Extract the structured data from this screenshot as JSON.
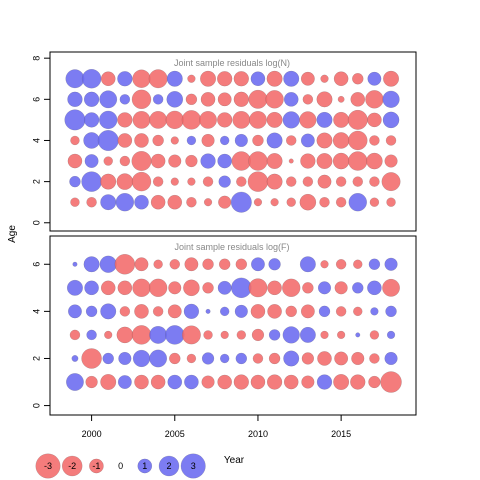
{
  "chart_data": {
    "type": "scatter",
    "subtype": "bubble-residual-plot",
    "ylabel": "Age",
    "xlabel": "Year",
    "x_ticks": [
      2000,
      2005,
      2010,
      2015
    ],
    "xlim": [
      1997.5,
      2019.5
    ],
    "years": [
      1999,
      2000,
      2001,
      2002,
      2003,
      2004,
      2005,
      2006,
      2007,
      2008,
      2009,
      2010,
      2011,
      2012,
      2013,
      2014,
      2015,
      2016,
      2017,
      2018
    ],
    "colors": {
      "positive": "#6a6af0",
      "negative": "#f26a6a",
      "edge": "#555555",
      "frame": "#000000",
      "title": "#888888"
    },
    "size_legend": [
      {
        "label": "-3",
        "value": -3
      },
      {
        "label": "-2",
        "value": -2
      },
      {
        "label": "-1",
        "value": -1
      },
      {
        "label": "0",
        "value": 0
      },
      {
        "label": "1",
        "value": 1
      },
      {
        "label": "2",
        "value": 2
      },
      {
        "label": "3",
        "value": 3
      }
    ],
    "panels": [
      {
        "title": "Joint sample residuals log(N)",
        "ylim": [
          -0.4,
          8.3
        ],
        "y_ticks": [
          0,
          2,
          4,
          6,
          8
        ],
        "residuals_by_age": {
          "1": [
            -0.4,
            -0.5,
            1.2,
            1.6,
            1.0,
            -1.0,
            -1.0,
            -0.5,
            -0.3,
            -0.8,
            2.1,
            -0.3,
            -0.3,
            -0.4,
            -1.3,
            -0.5,
            -0.5,
            1.6,
            -0.4,
            -0.4
          ],
          "2": [
            0.6,
            2.0,
            -1.2,
            -1.3,
            -1.8,
            -0.5,
            -0.3,
            -0.3,
            -0.5,
            0.7,
            -0.5,
            -2.0,
            -1.2,
            -0.5,
            -0.5,
            -0.9,
            -0.5,
            -0.5,
            -0.5,
            -1.7
          ],
          "3": [
            -1.0,
            0.9,
            -0.4,
            -0.5,
            -1.9,
            -1.0,
            -0.8,
            -0.7,
            1.1,
            1.0,
            -1.8,
            -1.8,
            -1.2,
            -0.1,
            -1.1,
            -1.2,
            -1.3,
            -1.8,
            -1.3,
            -0.8
          ],
          "4": [
            -0.4,
            1.3,
            2.1,
            -1.0,
            -1.0,
            -0.6,
            -0.3,
            0.4,
            -0.8,
            0.4,
            0.8,
            -0.6,
            1.2,
            -0.5,
            0.9,
            -1.2,
            -1.3,
            -1.8,
            -0.5,
            -0.5
          ],
          "5": [
            2.1,
            1.1,
            1.6,
            -1.1,
            -1.5,
            -1.5,
            -1.6,
            -1.8,
            -1.5,
            -1.1,
            -1.5,
            -1.5,
            -1.2,
            1.4,
            -1.4,
            1.2,
            -1.2,
            -1.9,
            -1.0,
            1.3
          ],
          "6": [
            1.1,
            1.1,
            1.5,
            0.5,
            -1.8,
            0.5,
            1.3,
            -0.6,
            -1.0,
            -0.9,
            -1.1,
            -1.7,
            -1.6,
            1.0,
            -0.5,
            -1.2,
            -0.2,
            -1.0,
            -1.6,
            1.4
          ],
          "7": [
            1.7,
            1.8,
            -1.0,
            1.1,
            -1.6,
            -1.7,
            1.2,
            -0.3,
            -1.2,
            -1.1,
            -1.1,
            1.0,
            -1.2,
            1.2,
            -0.9,
            -0.3,
            -1.0,
            -0.6,
            0.9,
            -1.2
          ]
        }
      },
      {
        "title": "Joint sample residuals log(F)",
        "ylim": [
          -0.4,
          7.2
        ],
        "y_ticks": [
          0,
          2,
          4,
          6
        ],
        "residuals_by_age": {
          "1": [
            1.5,
            -0.7,
            -1.2,
            0.9,
            -1.0,
            -1.0,
            1.0,
            1.0,
            -0.8,
            -1.0,
            -1.1,
            -1.0,
            -1.1,
            -1.0,
            -0.8,
            1.1,
            -1.2,
            -1.1,
            -0.7,
            -2.2
          ],
          "2": [
            0.2,
            -2.0,
            0.6,
            0.8,
            1.4,
            1.5,
            -0.6,
            -0.4,
            0.7,
            0.4,
            0.6,
            -0.5,
            -0.6,
            1.2,
            -0.7,
            -1.0,
            -0.9,
            -0.8,
            -0.5,
            0.8
          ],
          "3": [
            -0.5,
            0.5,
            -0.3,
            -1.3,
            -1.8,
            1.5,
            1.8,
            -1.7,
            -0.4,
            -0.3,
            -0.4,
            -0.7,
            0.6,
            1.4,
            1.2,
            -0.3,
            -0.3,
            0.1,
            -0.4,
            0.3
          ],
          "4": [
            0.9,
            0.6,
            1.2,
            -0.5,
            -1.0,
            -0.5,
            -0.9,
            1.1,
            0.1,
            0.4,
            0.8,
            -1.0,
            -1.0,
            -0.6,
            -0.9,
            0.6,
            -0.5,
            -0.4,
            0.3,
            0.6
          ],
          "5": [
            1.2,
            1.0,
            -1.0,
            -1.0,
            -1.6,
            -1.6,
            -0.8,
            -1.3,
            -0.6,
            0.9,
            2.0,
            -1.7,
            -1.0,
            -1.6,
            -0.6,
            0.8,
            -0.8,
            0.6,
            1.0,
            -1.5
          ],
          "6": [
            0.1,
            1.2,
            1.4,
            -2.0,
            -0.9,
            -0.4,
            -0.5,
            -0.9,
            -0.6,
            -0.6,
            -0.6,
            0.9,
            0.7,
            0.0,
            1.2,
            -0.3,
            -0.5,
            -0.4,
            0.6,
            0.8
          ]
        }
      }
    ]
  }
}
